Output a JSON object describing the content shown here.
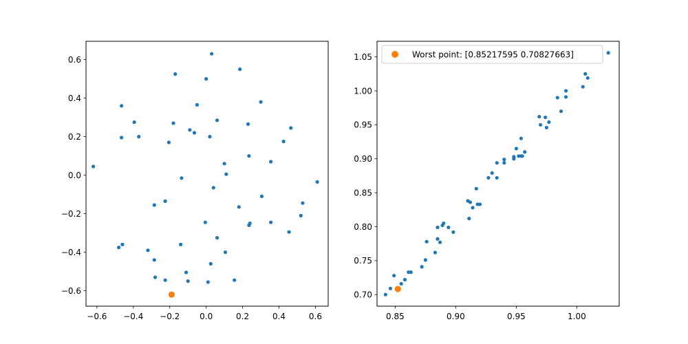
{
  "chart_data": [
    {
      "type": "scatter",
      "xlim": [
        -0.66,
        0.67
      ],
      "ylim": [
        -0.68,
        0.695
      ],
      "xticks": [
        -0.6,
        -0.4,
        -0.2,
        0.0,
        0.2,
        0.4,
        0.6
      ],
      "xtick_labels": [
        "−0.6",
        "−0.4",
        "−0.2",
        "0.0",
        "0.2",
        "0.4",
        "0.6"
      ],
      "yticks": [
        -0.6,
        -0.4,
        -0.2,
        0.0,
        0.2,
        0.4,
        0.6
      ],
      "ytick_labels": [
        "−0.6",
        "−0.4",
        "−0.2",
        "0.0",
        "0.2",
        "0.4",
        "0.6"
      ],
      "grid": false,
      "series": [
        {
          "color": "#1f77b4",
          "points": [
            [
              0.03,
              0.63
            ],
            [
              -0.17,
              0.525
            ],
            [
              0.0,
              0.5
            ],
            [
              0.185,
              0.55
            ],
            [
              -0.465,
              0.36
            ],
            [
              -0.395,
              0.275
            ],
            [
              -0.05,
              0.365
            ],
            [
              0.3,
              0.38
            ],
            [
              -0.18,
              0.27
            ],
            [
              -0.09,
              0.235
            ],
            [
              0.06,
              0.285
            ],
            [
              0.23,
              0.265
            ],
            [
              0.465,
              0.245
            ],
            [
              -0.465,
              0.195
            ],
            [
              -0.37,
              0.2
            ],
            [
              -0.065,
              0.22
            ],
            [
              0.02,
              0.2
            ],
            [
              -0.205,
              0.17
            ],
            [
              0.425,
              0.175
            ],
            [
              -0.62,
              0.045
            ],
            [
              0.1,
              0.06
            ],
            [
              0.235,
              0.1
            ],
            [
              0.355,
              0.07
            ],
            [
              0.11,
              0.005
            ],
            [
              -0.135,
              -0.015
            ],
            [
              0.04,
              -0.065
            ],
            [
              -0.225,
              -0.135
            ],
            [
              -0.285,
              -0.155
            ],
            [
              0.18,
              -0.165
            ],
            [
              0.305,
              -0.11
            ],
            [
              0.53,
              -0.145
            ],
            [
              0.61,
              -0.035
            ],
            [
              0.52,
              -0.21
            ],
            [
              -0.005,
              -0.245
            ],
            [
              0.235,
              -0.26
            ],
            [
              0.24,
              -0.25
            ],
            [
              0.355,
              -0.245
            ],
            [
              0.455,
              -0.295
            ],
            [
              0.06,
              -0.325
            ],
            [
              -0.14,
              -0.36
            ],
            [
              -0.46,
              -0.36
            ],
            [
              -0.48,
              -0.375
            ],
            [
              -0.32,
              -0.39
            ],
            [
              0.105,
              -0.4
            ],
            [
              -0.285,
              -0.44
            ],
            [
              0.025,
              -0.46
            ],
            [
              -0.11,
              -0.505
            ],
            [
              -0.28,
              -0.53
            ],
            [
              -0.225,
              -0.545
            ],
            [
              -0.1,
              -0.55
            ],
            [
              0.01,
              -0.555
            ],
            [
              0.155,
              -0.545
            ]
          ]
        },
        {
          "color": "#ff7f0e",
          "points": [
            [
              -0.19,
              -0.62
            ]
          ]
        }
      ]
    },
    {
      "type": "scatter",
      "xlim": [
        0.835,
        1.035
      ],
      "ylim": [
        0.683,
        1.073
      ],
      "xticks": [
        0.85,
        0.9,
        0.95,
        1.0
      ],
      "xtick_labels": [
        "0.85",
        "0.90",
        "0.95",
        "1.00"
      ],
      "yticks": [
        0.7,
        0.75,
        0.8,
        0.85,
        0.9,
        0.95,
        1.0,
        1.05
      ],
      "ytick_labels": [
        "0.70",
        "0.75",
        "0.80",
        "0.85",
        "0.90",
        "0.95",
        "1.00",
        "1.05"
      ],
      "grid": false,
      "legend": {
        "placement": "upper-left",
        "entries": [
          {
            "label": "Worst point: [0.85217595 0.70827663]",
            "color": "#ff7f0e"
          }
        ]
      },
      "series": [
        {
          "color": "#1f77b4",
          "points": [
            [
              0.842,
              0.7
            ],
            [
              0.846,
              0.709
            ],
            [
              0.849,
              0.728
            ],
            [
              0.855,
              0.716
            ],
            [
              0.858,
              0.722
            ],
            [
              0.861,
              0.733
            ],
            [
              0.863,
              0.733
            ],
            [
              0.872,
              0.741
            ],
            [
              0.875,
              0.751
            ],
            [
              0.876,
              0.778
            ],
            [
              0.883,
              0.762
            ],
            [
              0.885,
              0.799
            ],
            [
              0.885,
              0.782
            ],
            [
              0.887,
              0.777
            ],
            [
              0.889,
              0.802
            ],
            [
              0.89,
              0.805
            ],
            [
              0.894,
              0.799
            ],
            [
              0.898,
              0.792
            ],
            [
              0.91,
              0.838
            ],
            [
              0.911,
              0.812
            ],
            [
              0.912,
              0.836
            ],
            [
              0.914,
              0.828
            ],
            [
              0.917,
              0.856
            ],
            [
              0.918,
              0.833
            ],
            [
              0.92,
              0.833
            ],
            [
              0.927,
              0.872
            ],
            [
              0.93,
              0.879
            ],
            [
              0.934,
              0.872
            ],
            [
              0.934,
              0.894
            ],
            [
              0.94,
              0.894
            ],
            [
              0.94,
              0.899
            ],
            [
              0.948,
              0.903
            ],
            [
              0.948,
              0.9
            ],
            [
              0.95,
              0.915
            ],
            [
              0.952,
              0.904
            ],
            [
              0.954,
              0.904
            ],
            [
              0.954,
              0.93
            ],
            [
              0.955,
              0.904
            ],
            [
              0.957,
              0.91
            ],
            [
              0.969,
              0.962
            ],
            [
              0.97,
              0.95
            ],
            [
              0.974,
              0.961
            ],
            [
              0.975,
              0.946
            ],
            [
              0.977,
              0.954
            ],
            [
              0.984,
              0.99
            ],
            [
              0.987,
              0.97
            ],
            [
              0.991,
              1.0
            ],
            [
              0.991,
              0.991
            ],
            [
              1.005,
              1.006
            ],
            [
              1.007,
              1.025
            ],
            [
              1.009,
              1.019
            ],
            [
              1.026,
              1.056
            ]
          ]
        },
        {
          "color": "#ff7f0e",
          "points": [
            [
              0.85217595,
              0.70827663
            ]
          ]
        }
      ]
    }
  ]
}
